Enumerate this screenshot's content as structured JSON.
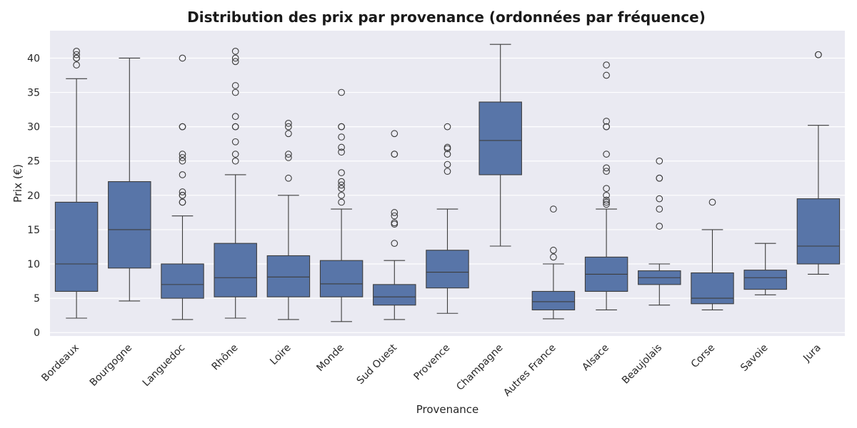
{
  "chart_data": {
    "type": "box",
    "title": "Distribution des prix par provenance (ordonnées par fréquence)",
    "xlabel": "Provenance",
    "ylabel": "Prix (€)",
    "ylim": [
      -0.5,
      44
    ],
    "yticks": [
      0,
      5,
      10,
      15,
      20,
      25,
      30,
      35,
      40
    ],
    "grid": true,
    "colors": {
      "box": "#5875a8",
      "edge": "#3d3d3d",
      "background": "#eaeaf2",
      "grid": "#ffffff"
    },
    "categories": [
      "Bordeaux",
      "Bourgogne",
      "Languedoc",
      "Rhône",
      "Loire",
      "Monde",
      "Sud Ouest",
      "Provence",
      "Champagne",
      "Autres France",
      "Alsace",
      "Beaujolais",
      "Corse",
      "Savoie",
      "Jura"
    ],
    "boxes": [
      {
        "category": "Bordeaux",
        "whisker_low": 2.1,
        "q1": 6,
        "median": 10,
        "q3": 19,
        "whisker_high": 37,
        "outliers": [
          39,
          40,
          40,
          40.5,
          41
        ]
      },
      {
        "category": "Bourgogne",
        "whisker_low": 4.6,
        "q1": 9.4,
        "median": 15,
        "q3": 22,
        "whisker_high": 40,
        "outliers": []
      },
      {
        "category": "Languedoc",
        "whisker_low": 1.9,
        "q1": 5,
        "median": 7,
        "q3": 10,
        "whisker_high": 17,
        "outliers": [
          19,
          19,
          20,
          20,
          20.5,
          23,
          25,
          25.5,
          26,
          30,
          30,
          40
        ]
      },
      {
        "category": "Rhône",
        "whisker_low": 2.1,
        "q1": 5.2,
        "median": 8,
        "q3": 13,
        "whisker_high": 23,
        "outliers": [
          25,
          26,
          27.8,
          30,
          30,
          31.5,
          35,
          36,
          39.5,
          40,
          41
        ]
      },
      {
        "category": "Loire",
        "whisker_low": 1.9,
        "q1": 5.2,
        "median": 8.1,
        "q3": 11.2,
        "whisker_high": 20,
        "outliers": [
          22.5,
          25.5,
          26,
          29,
          30,
          30.5
        ]
      },
      {
        "category": "Monde",
        "whisker_low": 1.6,
        "q1": 5.2,
        "median": 7.1,
        "q3": 10.5,
        "whisker_high": 18,
        "outliers": [
          19,
          20,
          21,
          21.5,
          22,
          23.3,
          26.3,
          27,
          28.5,
          30,
          30,
          35
        ]
      },
      {
        "category": "Sud Ouest",
        "whisker_low": 1.9,
        "q1": 4,
        "median": 5.2,
        "q3": 7,
        "whisker_high": 10.5,
        "outliers": [
          13,
          15.8,
          16,
          17,
          17.5,
          26,
          26,
          29
        ]
      },
      {
        "category": "Provence",
        "whisker_low": 2.8,
        "q1": 6.5,
        "median": 8.8,
        "q3": 12,
        "whisker_high": 18,
        "outliers": [
          23.5,
          24.5,
          26,
          26.8,
          27,
          30
        ]
      },
      {
        "category": "Champagne",
        "whisker_low": 12.6,
        "q1": 23,
        "median": 28,
        "q3": 33.6,
        "whisker_high": 42,
        "outliers": []
      },
      {
        "category": "Autres France",
        "whisker_low": 2,
        "q1": 3.3,
        "median": 4.5,
        "q3": 6,
        "whisker_high": 10,
        "outliers": [
          11,
          12,
          18
        ]
      },
      {
        "category": "Alsace",
        "whisker_low": 3.3,
        "q1": 6,
        "median": 8.5,
        "q3": 11,
        "whisker_high": 18,
        "outliers": [
          18.7,
          19,
          19.3,
          20,
          21,
          23.5,
          24,
          26,
          30,
          30,
          30.8,
          37.5,
          39
        ]
      },
      {
        "category": "Beaujolais",
        "whisker_low": 4,
        "q1": 7,
        "median": 8,
        "q3": 9,
        "whisker_high": 10,
        "outliers": [
          15.5,
          18,
          19.5,
          22.5,
          22.5,
          25
        ]
      },
      {
        "category": "Corse",
        "whisker_low": 3.3,
        "q1": 4.2,
        "median": 5,
        "q3": 8.7,
        "whisker_high": 15,
        "outliers": [
          19
        ]
      },
      {
        "category": "Savoie",
        "whisker_low": 5.5,
        "q1": 6.3,
        "median": 8,
        "q3": 9.1,
        "whisker_high": 13,
        "outliers": []
      },
      {
        "category": "Jura",
        "whisker_low": 8.5,
        "q1": 10,
        "median": 12.6,
        "q3": 19.5,
        "whisker_high": 30.2,
        "outliers": [
          40.5,
          40.5
        ]
      }
    ]
  }
}
